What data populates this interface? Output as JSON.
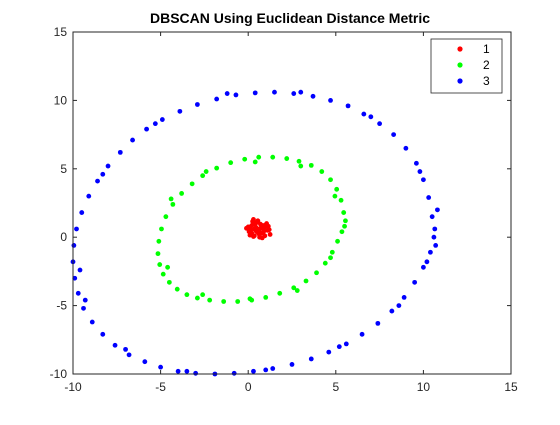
{
  "chart_data": {
    "type": "scatter",
    "title": "DBSCAN Using Euclidean Distance Metric",
    "xlabel": "",
    "ylabel": "",
    "xlim": [
      -10,
      15
    ],
    "ylim": [
      -10,
      15
    ],
    "xticks": [
      "-10",
      "-5",
      "0",
      "5",
      "10",
      "15"
    ],
    "yticks": [
      "-10",
      "-5",
      "0",
      "5",
      "10",
      "15"
    ],
    "xtick_values": [
      -10,
      -5,
      0,
      5,
      10,
      15
    ],
    "ytick_values": [
      -10,
      -5,
      0,
      5,
      10,
      15
    ],
    "grid": false,
    "legend_position": "top-right",
    "series": [
      {
        "name": "1",
        "color": "#ff0000",
        "x": [
          0.5,
          0.85,
          0.2,
          1.1,
          0.35,
          0.7,
          0.05,
          0.95,
          0.55,
          1.25,
          -0.1,
          0.4,
          0.8,
          0.15,
          1.0,
          0.6,
          0.3,
          0.9,
          0.45,
          0.1,
          1.15,
          0.65,
          0.25,
          0.75,
          0.0,
          1.05,
          0.5,
          0.35,
          0.85,
          0.2,
          0.6,
          0.95,
          0.4,
          0.7,
          0.15,
          1.2,
          0.55,
          0.3,
          0.8,
          0.45
        ],
        "y": [
          0.6,
          0.35,
          0.85,
          0.5,
          0.1,
          0.95,
          0.4,
          0.75,
          1.2,
          0.2,
          0.65,
          1.05,
          -0.05,
          0.55,
          0.9,
          0.25,
          1.3,
          0.45,
          0.7,
          0.15,
          0.8,
          0.0,
          1.15,
          0.3,
          0.75,
          1.0,
          0.4,
          0.6,
          0.85,
          0.3,
          0.5,
          0.1,
          0.95,
          0.65,
          0.2,
          0.55,
          1.1,
          0.05,
          0.7,
          0.45
        ]
      },
      {
        "name": "2",
        "color": "#00ff00",
        "x": [
          5.5,
          5.45,
          5.3,
          5.05,
          4.7,
          4.2,
          3.6,
          2.9,
          2.2,
          1.4,
          0.6,
          -0.2,
          -1.0,
          -1.8,
          -2.6,
          -3.2,
          -3.8,
          -4.3,
          -4.7,
          -4.95,
          -5.1,
          -5.15,
          -5.05,
          -4.85,
          -4.5,
          -4.05,
          -3.5,
          -2.9,
          -2.2,
          -1.4,
          -0.6,
          0.2,
          1.0,
          1.8,
          2.6,
          3.3,
          3.9,
          4.4,
          4.8,
          5.1,
          5.35,
          5.55,
          4.95,
          3.0,
          0.4,
          -2.4,
          -4.4,
          -4.6,
          -2.6,
          0.1,
          2.8,
          4.7
        ],
        "y": [
          0.8,
          1.8,
          2.7,
          3.5,
          4.2,
          4.8,
          5.25,
          5.55,
          5.75,
          5.85,
          5.85,
          5.7,
          5.45,
          5.05,
          4.5,
          3.9,
          3.2,
          2.4,
          1.5,
          0.6,
          -0.3,
          -1.2,
          -2.0,
          -2.7,
          -3.3,
          -3.8,
          -4.2,
          -4.45,
          -4.6,
          -4.7,
          -4.7,
          -4.6,
          -4.4,
          -4.1,
          -3.7,
          -3.2,
          -2.6,
          -1.9,
          -1.1,
          -0.3,
          0.4,
          1.2,
          3.0,
          5.2,
          5.5,
          4.8,
          2.8,
          -2.2,
          -4.2,
          -4.5,
          -3.9,
          -1.5
        ]
      },
      {
        "name": "3",
        "color": "#0000ff",
        "x": [
          10.6,
          10.5,
          10.3,
          10.0,
          9.6,
          9.0,
          8.3,
          7.5,
          6.6,
          5.7,
          4.7,
          3.7,
          2.6,
          1.5,
          0.4,
          -0.7,
          -1.8,
          -2.9,
          -3.9,
          -4.9,
          -5.8,
          -6.6,
          -7.3,
          -8.0,
          -8.6,
          -9.1,
          -9.5,
          -9.8,
          -9.95,
          -10.0,
          -9.9,
          -9.7,
          -9.4,
          -8.9,
          -8.3,
          -7.6,
          -6.8,
          -5.9,
          -5.0,
          -4.0,
          -3.0,
          -1.9,
          -0.8,
          0.3,
          1.4,
          2.5,
          3.6,
          4.6,
          5.6,
          6.5,
          7.4,
          8.2,
          8.9,
          9.5,
          10.0,
          10.4,
          10.65,
          10.8,
          10.7,
          9.8,
          7.0,
          3.0,
          -1.2,
          -5.3,
          -8.3,
          -9.6,
          -9.3,
          -7.0,
          -3.5,
          1.0,
          5.2,
          8.6,
          10.2
        ],
        "y": [
          0.0,
          1.5,
          2.9,
          4.2,
          5.4,
          6.5,
          7.5,
          8.3,
          9.0,
          9.6,
          10.0,
          10.3,
          10.5,
          10.6,
          10.55,
          10.4,
          10.1,
          9.7,
          9.2,
          8.6,
          7.9,
          7.1,
          6.2,
          5.2,
          4.1,
          3.0,
          1.8,
          0.6,
          -0.6,
          -1.8,
          -3.0,
          -4.1,
          -5.2,
          -6.2,
          -7.1,
          -7.9,
          -8.6,
          -9.1,
          -9.5,
          -9.8,
          -9.95,
          -10.0,
          -9.95,
          -9.8,
          -9.6,
          -9.3,
          -8.9,
          -8.4,
          -7.8,
          -7.1,
          -6.3,
          -5.4,
          -4.4,
          -3.3,
          -2.2,
          -1.1,
          0.6,
          2.0,
          -0.6,
          4.8,
          8.8,
          10.6,
          10.5,
          8.3,
          4.6,
          -2.4,
          -4.6,
          -8.2,
          -9.8,
          -9.7,
          -8.0,
          -5.0,
          -1.8
        ]
      }
    ]
  }
}
